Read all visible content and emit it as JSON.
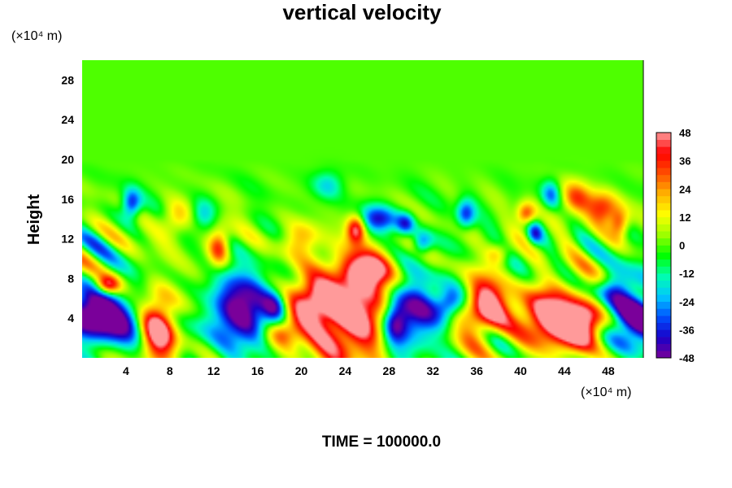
{
  "chart_data": {
    "type": "heatmap",
    "title": "vertical velocity",
    "ylabel": "Height",
    "y_unit": "(×10⁴ m)",
    "x_unit": "(×10⁴ m)",
    "xlabel": "",
    "x_ticks": [
      "4",
      "8",
      "12",
      "16",
      "20",
      "24",
      "28",
      "32",
      "36",
      "40",
      "44",
      "48"
    ],
    "x_tick_values": [
      4,
      8,
      12,
      16,
      20,
      24,
      28,
      32,
      36,
      40,
      44,
      48
    ],
    "y_ticks": [
      "4",
      "8",
      "12",
      "16",
      "20",
      "24",
      "28"
    ],
    "y_tick_values": [
      4,
      8,
      12,
      16,
      20,
      24,
      28
    ],
    "xlim": [
      0,
      51.2
    ],
    "ylim": [
      0,
      30
    ],
    "colorbar": {
      "ticks": [
        "48",
        "36",
        "24",
        "12",
        "0",
        "-12",
        "-24",
        "-36",
        "-48"
      ],
      "tick_values": [
        48,
        36,
        24,
        12,
        0,
        -12,
        -24,
        -36,
        -48
      ],
      "range": [
        -48,
        48
      ],
      "colors": [
        "#7a009a",
        "#1a00c8",
        "#0050ff",
        "#00c8ff",
        "#00ffb0",
        "#00ff00",
        "#9cff00",
        "#ffff00",
        "#ffb400",
        "#ff5000",
        "#ff0000",
        "#ff9a9a"
      ]
    },
    "features": [
      {
        "x": 2.5,
        "y": 3.5,
        "sx": 2.5,
        "sy": 1.6,
        "v": -52
      },
      {
        "x": 0.8,
        "y": 5.5,
        "sx": 1.5,
        "sy": 1.5,
        "v": -38
      },
      {
        "x": 6.9,
        "y": 3.0,
        "sx": 1.2,
        "sy": 2.4,
        "v": 60
      },
      {
        "x": 2.3,
        "y": 7.3,
        "sx": 0.8,
        "sy": 0.7,
        "v": 42
      },
      {
        "x": 14.5,
        "y": 4.8,
        "sx": 2.0,
        "sy": 2.6,
        "v": -55
      },
      {
        "x": 17.6,
        "y": 5.0,
        "sx": 0.8,
        "sy": 1.2,
        "v": -32
      },
      {
        "x": 18.0,
        "y": 2.3,
        "sx": 1.2,
        "sy": 1.0,
        "v": 22
      },
      {
        "x": 24.4,
        "y": 4.6,
        "sx": 3.2,
        "sy": 3.5,
        "v": 62
      },
      {
        "x": 20.5,
        "y": 5.2,
        "sx": 1.5,
        "sy": 1.5,
        "v": 30
      },
      {
        "x": 26.0,
        "y": 8.8,
        "sx": 1.5,
        "sy": 1.3,
        "v": 40
      },
      {
        "x": 30.0,
        "y": 4.5,
        "sx": 1.8,
        "sy": 2.6,
        "v": -55
      },
      {
        "x": 28.5,
        "y": 3.5,
        "sx": 0.8,
        "sy": 1.5,
        "v": -38
      },
      {
        "x": 33.5,
        "y": 5.5,
        "sx": 0.9,
        "sy": 1.0,
        "v": -36
      },
      {
        "x": 36.7,
        "y": 4.9,
        "sx": 1.4,
        "sy": 2.0,
        "v": 58
      },
      {
        "x": 43.0,
        "y": 4.0,
        "sx": 2.2,
        "sy": 2.3,
        "v": 60
      },
      {
        "x": 46.0,
        "y": 3.5,
        "sx": 1.3,
        "sy": 1.6,
        "v": 45
      },
      {
        "x": 50.5,
        "y": 4.0,
        "sx": 1.8,
        "sy": 2.2,
        "v": -55
      },
      {
        "x": 48.5,
        "y": 7.0,
        "sx": 1.2,
        "sy": 1.2,
        "v": -30
      },
      {
        "x": 4.5,
        "y": 15.5,
        "sx": 0.6,
        "sy": 1.0,
        "v": -38
      },
      {
        "x": 12.5,
        "y": 11.2,
        "sx": 0.7,
        "sy": 1.4,
        "v": 38
      },
      {
        "x": 25.0,
        "y": 13.0,
        "sx": 0.6,
        "sy": 1.0,
        "v": 45
      },
      {
        "x": 27.0,
        "y": 14.0,
        "sx": 1.3,
        "sy": 1.0,
        "v": -36
      },
      {
        "x": 29.5,
        "y": 13.5,
        "sx": 0.6,
        "sy": 0.8,
        "v": -32
      },
      {
        "x": 31.0,
        "y": 11.5,
        "sx": 0.6,
        "sy": 0.8,
        "v": -28
      },
      {
        "x": 35.0,
        "y": 14.5,
        "sx": 0.6,
        "sy": 1.0,
        "v": -34
      },
      {
        "x": 40.5,
        "y": 14.5,
        "sx": 0.6,
        "sy": 0.8,
        "v": 34
      },
      {
        "x": 41.3,
        "y": 12.5,
        "sx": 0.5,
        "sy": 0.8,
        "v": -28
      },
      {
        "x": 45.0,
        "y": 16.0,
        "sx": 1.0,
        "sy": 1.2,
        "v": 30
      },
      {
        "x": 47.5,
        "y": 15.0,
        "sx": 1.0,
        "sy": 1.2,
        "v": 35
      },
      {
        "x": 49.0,
        "y": 13.5,
        "sx": 0.6,
        "sy": 1.0,
        "v": 32
      },
      {
        "x": 42.8,
        "y": 16.5,
        "sx": 0.6,
        "sy": 1.0,
        "v": -25
      },
      {
        "x": 38.0,
        "y": 10.5,
        "sx": 0.8,
        "sy": 0.8,
        "v": 22
      },
      {
        "x": 8.5,
        "y": 14.0,
        "sx": 1.0,
        "sy": 1.2,
        "v": 22
      },
      {
        "x": 20.0,
        "y": 12.0,
        "sx": 1.2,
        "sy": 1.2,
        "v": 20
      },
      {
        "x": 22.5,
        "y": 17.5,
        "sx": 1.0,
        "sy": 1.0,
        "v": -18
      },
      {
        "x": 11.0,
        "y": 14.5,
        "sx": 0.8,
        "sy": 1.0,
        "v": -18
      }
    ]
  },
  "footer": {
    "time_label": "TIME = 100000.0"
  }
}
